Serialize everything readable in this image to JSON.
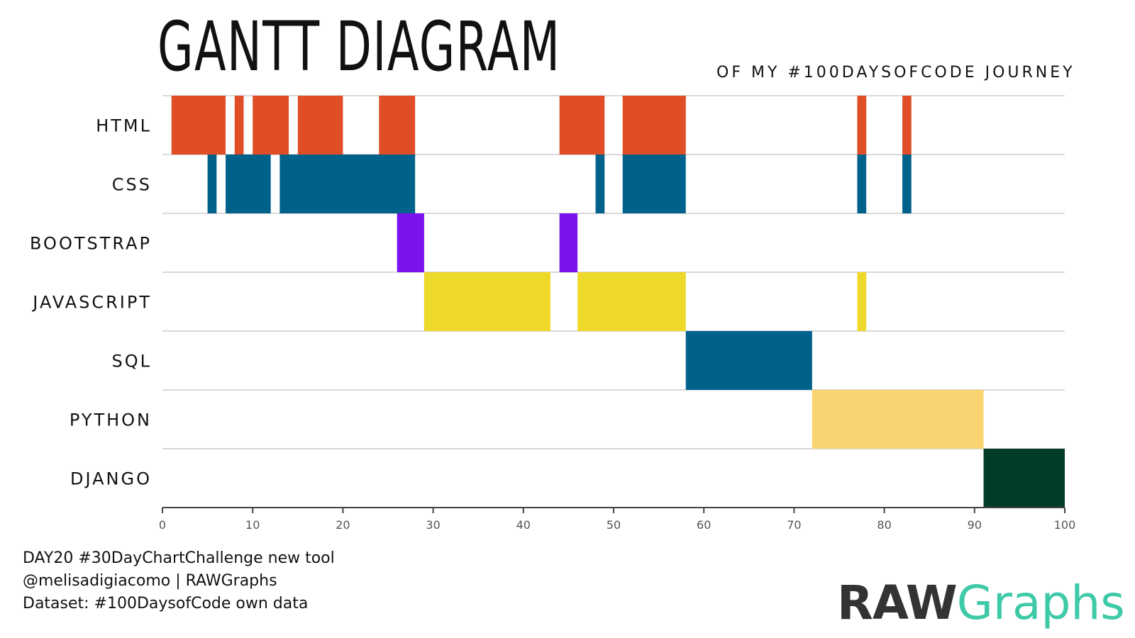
{
  "title": "GANTT DIAGRAM",
  "subtitle": "OF MY #100DAYSOFCODE JOURNEY",
  "footer": {
    "line1": "DAY20 #30DayChartChallenge new tool",
    "line2": "@melisadigiacomo | RAWGraphs",
    "line3": "Dataset: #100DaysofCode own data"
  },
  "logo": {
    "part1": "RAW",
    "part2": "Graphs",
    "color1": "#333333",
    "color2": "#3ec9a7"
  },
  "chart_data": {
    "type": "gantt",
    "xlim": [
      0,
      100
    ],
    "xticks": [
      0,
      10,
      20,
      30,
      40,
      50,
      60,
      70,
      80,
      90,
      100
    ],
    "grid": "horizontal row separators",
    "categories": [
      "HTML",
      "CSS",
      "BOOTSTRAP",
      "JAVASCRIPT",
      "SQL",
      "PYTHON",
      "DJANGO"
    ],
    "colors": {
      "HTML": "#e04e28",
      "CSS": "#00628b",
      "BOOTSTRAP": "#7a13ee",
      "JAVASCRIPT": "#eed82a",
      "SQL": "#00628b",
      "PYTHON": "#f8d571",
      "DJANGO": "#013b2a"
    },
    "tasks": [
      {
        "category": "HTML",
        "start": 1,
        "end": 7
      },
      {
        "category": "HTML",
        "start": 8,
        "end": 9
      },
      {
        "category": "HTML",
        "start": 10,
        "end": 14
      },
      {
        "category": "HTML",
        "start": 15,
        "end": 20
      },
      {
        "category": "HTML",
        "start": 24,
        "end": 28
      },
      {
        "category": "HTML",
        "start": 44,
        "end": 49
      },
      {
        "category": "HTML",
        "start": 51,
        "end": 58
      },
      {
        "category": "HTML",
        "start": 77,
        "end": 78
      },
      {
        "category": "HTML",
        "start": 82,
        "end": 83
      },
      {
        "category": "CSS",
        "start": 5,
        "end": 6
      },
      {
        "category": "CSS",
        "start": 7,
        "end": 12
      },
      {
        "category": "CSS",
        "start": 13,
        "end": 28
      },
      {
        "category": "CSS",
        "start": 48,
        "end": 49
      },
      {
        "category": "CSS",
        "start": 51,
        "end": 58
      },
      {
        "category": "CSS",
        "start": 77,
        "end": 78
      },
      {
        "category": "CSS",
        "start": 82,
        "end": 83
      },
      {
        "category": "BOOTSTRAP",
        "start": 26,
        "end": 29
      },
      {
        "category": "BOOTSTRAP",
        "start": 44,
        "end": 46
      },
      {
        "category": "JAVASCRIPT",
        "start": 29,
        "end": 43
      },
      {
        "category": "JAVASCRIPT",
        "start": 46,
        "end": 58
      },
      {
        "category": "JAVASCRIPT",
        "start": 77,
        "end": 78
      },
      {
        "category": "SQL",
        "start": 58,
        "end": 72
      },
      {
        "category": "PYTHON",
        "start": 72,
        "end": 91
      },
      {
        "category": "DJANGO",
        "start": 91,
        "end": 100
      }
    ]
  }
}
